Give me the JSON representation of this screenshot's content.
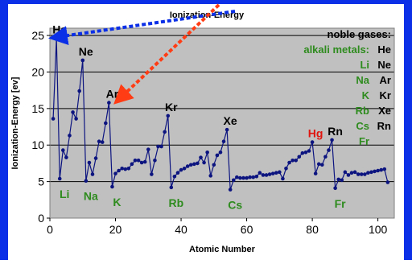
{
  "colors": {
    "frame": "#0a2fe6",
    "plot_bg": "#c0c0c0",
    "series": "#0c1480",
    "alkali": "#2e8b1e",
    "mercury": "#e0150f",
    "noble": "#000000",
    "arrow_red": "#ff3c14",
    "arrow_blue": "#0a2fe6"
  },
  "chart_data": {
    "type": "line",
    "title": "Ionization-Energy",
    "xlabel": "Atomic Number",
    "ylabel": "Ionization-Energy [ev]",
    "xlim": [
      0,
      105
    ],
    "ylim": [
      0,
      26
    ],
    "xticks": [
      0,
      20,
      40,
      60,
      80,
      100
    ],
    "yticks": [
      0,
      5,
      10,
      15,
      20,
      25
    ],
    "grid": "horizontal",
    "series": [
      {
        "values": [
          [
            1,
            13.6
          ],
          [
            2,
            24.6
          ],
          [
            3,
            5.4
          ],
          [
            4,
            9.3
          ],
          [
            5,
            8.3
          ],
          [
            6,
            11.3
          ],
          [
            7,
            14.5
          ],
          [
            8,
            13.6
          ],
          [
            9,
            17.4
          ],
          [
            10,
            21.6
          ],
          [
            11,
            5.1
          ],
          [
            12,
            7.6
          ],
          [
            13,
            6.0
          ],
          [
            14,
            8.2
          ],
          [
            15,
            10.5
          ],
          [
            16,
            10.4
          ],
          [
            17,
            13.0
          ],
          [
            18,
            15.8
          ],
          [
            19,
            4.3
          ],
          [
            20,
            6.1
          ],
          [
            21,
            6.5
          ],
          [
            22,
            6.8
          ],
          [
            23,
            6.7
          ],
          [
            24,
            6.8
          ],
          [
            25,
            7.4
          ],
          [
            26,
            7.9
          ],
          [
            27,
            7.9
          ],
          [
            28,
            7.6
          ],
          [
            29,
            7.7
          ],
          [
            30,
            9.4
          ],
          [
            31,
            6.0
          ],
          [
            32,
            7.9
          ],
          [
            33,
            9.8
          ],
          [
            34,
            9.8
          ],
          [
            35,
            11.8
          ],
          [
            36,
            14.0
          ],
          [
            37,
            4.2
          ],
          [
            38,
            5.7
          ],
          [
            39,
            6.2
          ],
          [
            40,
            6.6
          ],
          [
            41,
            6.8
          ],
          [
            42,
            7.1
          ],
          [
            43,
            7.3
          ],
          [
            44,
            7.4
          ],
          [
            45,
            7.5
          ],
          [
            46,
            8.3
          ],
          [
            47,
            7.6
          ],
          [
            48,
            9.0
          ],
          [
            49,
            5.8
          ],
          [
            50,
            7.3
          ],
          [
            51,
            8.6
          ],
          [
            52,
            9.0
          ],
          [
            53,
            10.5
          ],
          [
            54,
            12.1
          ],
          [
            55,
            3.9
          ],
          [
            56,
            5.2
          ],
          [
            57,
            5.6
          ],
          [
            58,
            5.5
          ],
          [
            59,
            5.5
          ],
          [
            60,
            5.5
          ],
          [
            61,
            5.6
          ],
          [
            62,
            5.6
          ],
          [
            63,
            5.7
          ],
          [
            64,
            6.2
          ],
          [
            65,
            5.9
          ],
          [
            66,
            5.9
          ],
          [
            67,
            6.0
          ],
          [
            68,
            6.1
          ],
          [
            69,
            6.2
          ],
          [
            70,
            6.3
          ],
          [
            71,
            5.4
          ],
          [
            72,
            6.8
          ],
          [
            73,
            7.6
          ],
          [
            74,
            7.9
          ],
          [
            75,
            7.9
          ],
          [
            76,
            8.4
          ],
          [
            77,
            8.9
          ],
          [
            78,
            9.0
          ],
          [
            79,
            9.2
          ],
          [
            80,
            10.4
          ],
          [
            81,
            6.1
          ],
          [
            82,
            7.4
          ],
          [
            83,
            7.3
          ],
          [
            84,
            8.4
          ],
          [
            85,
            9.3
          ],
          [
            86,
            10.7
          ],
          [
            87,
            4.1
          ],
          [
            88,
            5.3
          ],
          [
            89,
            5.2
          ],
          [
            90,
            6.3
          ],
          [
            91,
            5.9
          ],
          [
            92,
            6.2
          ],
          [
            93,
            6.3
          ],
          [
            94,
            6.0
          ],
          [
            95,
            6.0
          ],
          [
            96,
            6.0
          ],
          [
            97,
            6.2
          ],
          [
            98,
            6.3
          ],
          [
            99,
            6.4
          ],
          [
            100,
            6.5
          ],
          [
            101,
            6.6
          ],
          [
            102,
            6.7
          ],
          [
            103,
            4.9
          ]
        ]
      }
    ],
    "annotations": [
      {
        "text": "He",
        "x": 2,
        "y": 24.6,
        "color": "noble"
      },
      {
        "text": "Ne",
        "x": 10,
        "y": 21.6,
        "color": "noble"
      },
      {
        "text": "Ar",
        "x": 18,
        "y": 15.8,
        "color": "noble"
      },
      {
        "text": "Kr",
        "x": 36,
        "y": 14.0,
        "color": "noble"
      },
      {
        "text": "Xe",
        "x": 54,
        "y": 12.1,
        "color": "noble"
      },
      {
        "text": "Rn",
        "x": 86,
        "y": 10.7,
        "color": "noble"
      },
      {
        "text": "Hg",
        "x": 80,
        "y": 10.4,
        "color": "mercury"
      },
      {
        "text": "Li",
        "x": 3,
        "y": 5.4,
        "color": "alkali"
      },
      {
        "text": "Na",
        "x": 11,
        "y": 5.1,
        "color": "alkali"
      },
      {
        "text": "K",
        "x": 19,
        "y": 4.3,
        "color": "alkali"
      },
      {
        "text": "Rb",
        "x": 37,
        "y": 4.2,
        "color": "alkali"
      },
      {
        "text": "Cs",
        "x": 55,
        "y": 3.9,
        "color": "alkali"
      },
      {
        "text": "Fr",
        "x": 87,
        "y": 4.1,
        "color": "alkali"
      }
    ],
    "legend_box": {
      "noble_label": "noble gases:",
      "alkali_label": "alkali metals:",
      "pairs": [
        {
          "alkali": "",
          "noble": "He"
        },
        {
          "alkali": "Li",
          "noble": "Ne"
        },
        {
          "alkali": "Na",
          "noble": "Ar"
        },
        {
          "alkali": "K",
          "noble": "Kr"
        },
        {
          "alkali": "Rb",
          "noble": "Xe"
        },
        {
          "alkali": "Cs",
          "noble": "Rn"
        },
        {
          "alkali": "Fr",
          "noble": ""
        }
      ]
    }
  }
}
